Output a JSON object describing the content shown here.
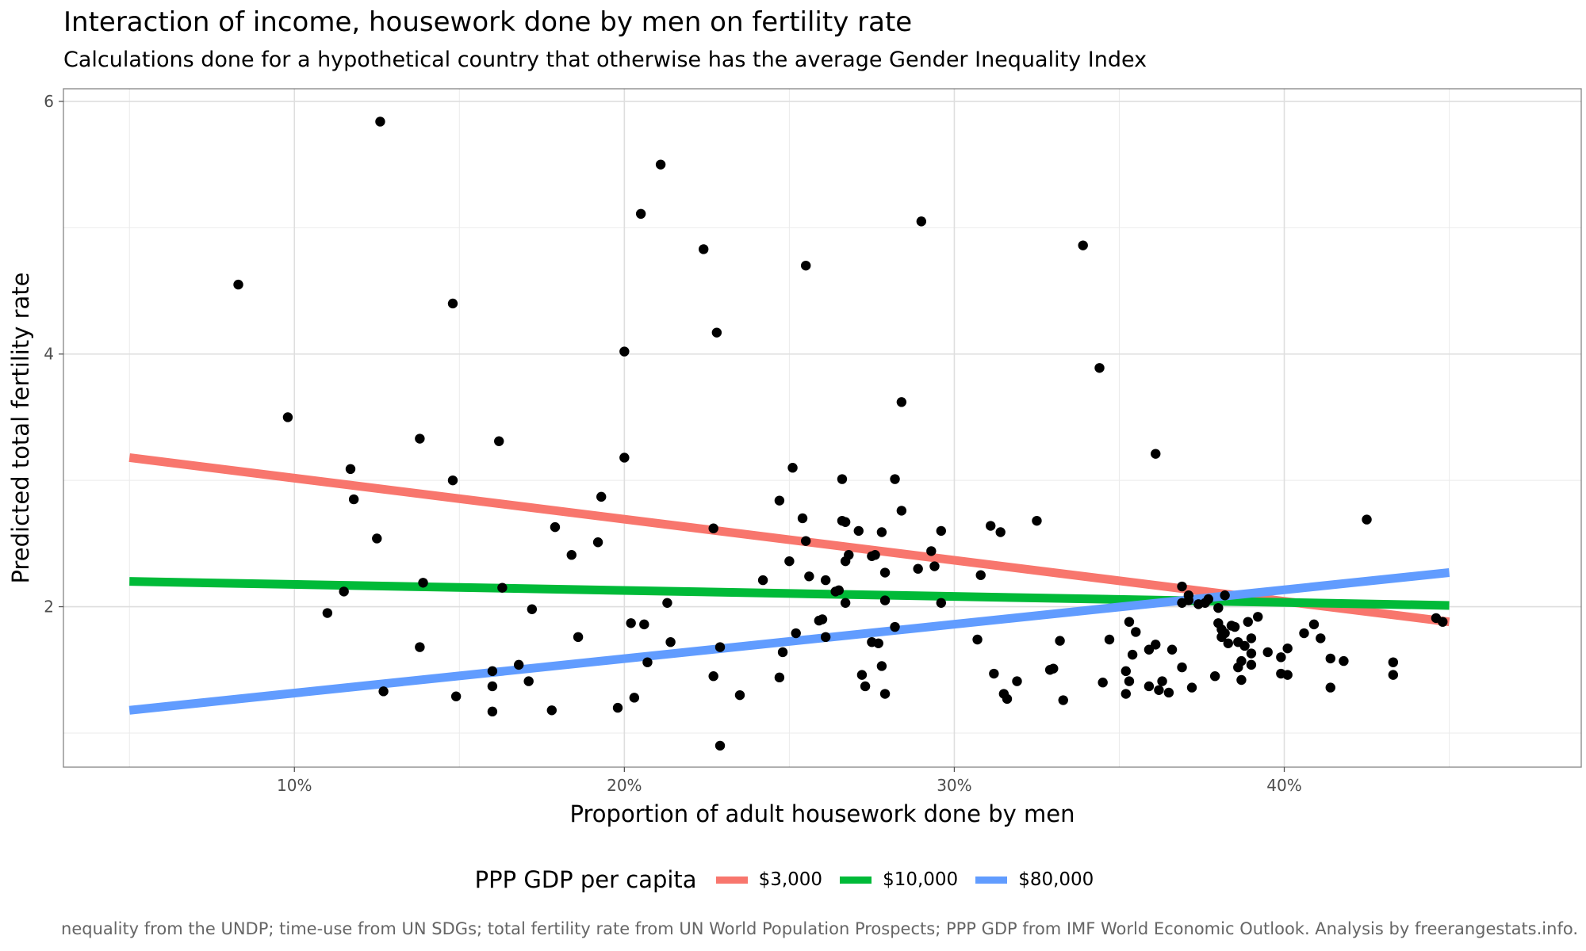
{
  "chart_data": {
    "type": "scatter",
    "title": "Interaction of income, housework done by men on fertility rate",
    "subtitle": "Calculations done for a hypothetical country that otherwise has the average Gender Inequality Index",
    "xlabel": "Proportion of adult housework done by men",
    "ylabel": "Predicted total fertility rate",
    "caption": "nequality from the UNDP; time-use from UN SDGs; total fertility rate from UN World Population Prospects; PPP GDP from IMF World Economic Outlook. Analysis by freerangestats.info.",
    "xlim": [
      3,
      49
    ],
    "ylim": [
      0.73,
      6.1
    ],
    "xticks": [
      10,
      20,
      30,
      40
    ],
    "xtick_labels": [
      "10%",
      "20%",
      "30%",
      "40%"
    ],
    "yticks": [
      2,
      4,
      6
    ],
    "ytick_labels": [
      "2",
      "4",
      "6"
    ],
    "grid": true,
    "legend": {
      "title": "PPP GDP per capita",
      "position": "bottom",
      "entries": [
        "$3,000",
        "$10,000",
        "$80,000"
      ]
    },
    "series": [
      {
        "name": "$3,000",
        "color": "#F8766D",
        "x": [
          5,
          45
        ],
        "y": [
          3.18,
          1.88
        ]
      },
      {
        "name": "$10,000",
        "color": "#00BA38",
        "x": [
          5,
          45
        ],
        "y": [
          2.2,
          2.01
        ]
      },
      {
        "name": "$80,000",
        "color": "#619CFF",
        "x": [
          5,
          45
        ],
        "y": [
          1.18,
          2.27
        ]
      }
    ],
    "points": [
      [
        8.3,
        4.55
      ],
      [
        9.8,
        3.5
      ],
      [
        11.0,
        1.95
      ],
      [
        11.5,
        2.12
      ],
      [
        11.7,
        3.09
      ],
      [
        11.8,
        2.85
      ],
      [
        12.5,
        2.54
      ],
      [
        12.6,
        5.84
      ],
      [
        12.7,
        1.33
      ],
      [
        13.8,
        3.33
      ],
      [
        13.8,
        1.68
      ],
      [
        13.9,
        2.19
      ],
      [
        14.8,
        4.4
      ],
      [
        14.8,
        3.0
      ],
      [
        14.9,
        1.29
      ],
      [
        16.0,
        1.17
      ],
      [
        16.0,
        1.49
      ],
      [
        16.0,
        1.37
      ],
      [
        16.2,
        3.31
      ],
      [
        16.3,
        2.15
      ],
      [
        16.8,
        1.54
      ],
      [
        17.1,
        1.41
      ],
      [
        17.2,
        1.98
      ],
      [
        17.8,
        1.18
      ],
      [
        17.9,
        2.63
      ],
      [
        18.4,
        2.41
      ],
      [
        18.6,
        1.76
      ],
      [
        19.2,
        2.51
      ],
      [
        19.3,
        2.87
      ],
      [
        19.8,
        1.2
      ],
      [
        20.0,
        4.02
      ],
      [
        20.0,
        3.18
      ],
      [
        20.2,
        1.87
      ],
      [
        20.3,
        1.28
      ],
      [
        20.5,
        5.11
      ],
      [
        20.6,
        1.86
      ],
      [
        20.7,
        1.56
      ],
      [
        21.1,
        5.5
      ],
      [
        21.3,
        2.03
      ],
      [
        21.4,
        1.72
      ],
      [
        22.4,
        4.83
      ],
      [
        22.7,
        2.62
      ],
      [
        22.7,
        1.45
      ],
      [
        22.8,
        4.17
      ],
      [
        22.9,
        0.9
      ],
      [
        22.9,
        1.68
      ],
      [
        23.5,
        1.3
      ],
      [
        24.2,
        2.21
      ],
      [
        24.7,
        1.44
      ],
      [
        24.7,
        2.84
      ],
      [
        24.8,
        1.64
      ],
      [
        25.0,
        2.36
      ],
      [
        25.1,
        3.1
      ],
      [
        25.2,
        1.79
      ],
      [
        25.4,
        2.7
      ],
      [
        25.5,
        4.7
      ],
      [
        25.5,
        2.52
      ],
      [
        25.6,
        2.24
      ],
      [
        25.9,
        1.89
      ],
      [
        26.0,
        1.9
      ],
      [
        26.1,
        1.76
      ],
      [
        26.1,
        2.21
      ],
      [
        26.4,
        2.12
      ],
      [
        26.5,
        2.13
      ],
      [
        26.6,
        3.01
      ],
      [
        26.6,
        2.68
      ],
      [
        26.7,
        2.67
      ],
      [
        26.7,
        2.03
      ],
      [
        26.7,
        2.36
      ],
      [
        26.8,
        2.41
      ],
      [
        27.1,
        2.6
      ],
      [
        27.2,
        1.46
      ],
      [
        27.3,
        1.37
      ],
      [
        27.5,
        2.4
      ],
      [
        27.5,
        1.72
      ],
      [
        27.6,
        2.41
      ],
      [
        27.7,
        1.71
      ],
      [
        27.8,
        2.59
      ],
      [
        27.8,
        1.53
      ],
      [
        27.9,
        2.27
      ],
      [
        27.9,
        2.05
      ],
      [
        27.9,
        1.31
      ],
      [
        28.2,
        1.84
      ],
      [
        28.2,
        3.01
      ],
      [
        28.4,
        3.62
      ],
      [
        28.4,
        2.76
      ],
      [
        28.9,
        2.3
      ],
      [
        29.0,
        5.05
      ],
      [
        29.3,
        2.44
      ],
      [
        29.4,
        2.32
      ],
      [
        29.6,
        2.03
      ],
      [
        29.6,
        2.6
      ],
      [
        30.7,
        1.74
      ],
      [
        30.8,
        2.25
      ],
      [
        31.1,
        2.64
      ],
      [
        31.2,
        1.47
      ],
      [
        31.4,
        2.59
      ],
      [
        31.5,
        1.31
      ],
      [
        31.6,
        1.27
      ],
      [
        31.9,
        1.41
      ],
      [
        32.5,
        2.68
      ],
      [
        32.9,
        1.5
      ],
      [
        33.0,
        1.51
      ],
      [
        33.2,
        1.73
      ],
      [
        33.3,
        1.26
      ],
      [
        33.9,
        4.86
      ],
      [
        34.4,
        3.89
      ],
      [
        34.5,
        1.4
      ],
      [
        34.7,
        1.74
      ],
      [
        35.2,
        1.49
      ],
      [
        35.2,
        1.31
      ],
      [
        35.3,
        1.41
      ],
      [
        35.3,
        1.88
      ],
      [
        35.4,
        1.62
      ],
      [
        35.5,
        1.8
      ],
      [
        35.9,
        1.66
      ],
      [
        35.9,
        1.37
      ],
      [
        36.1,
        1.7
      ],
      [
        36.1,
        3.21
      ],
      [
        36.2,
        1.34
      ],
      [
        36.3,
        1.41
      ],
      [
        36.5,
        1.32
      ],
      [
        36.6,
        1.66
      ],
      [
        36.9,
        1.52
      ],
      [
        36.9,
        2.16
      ],
      [
        36.9,
        2.03
      ],
      [
        37.1,
        2.05
      ],
      [
        37.1,
        2.09
      ],
      [
        37.2,
        1.36
      ],
      [
        37.4,
        2.02
      ],
      [
        37.6,
        2.03
      ],
      [
        37.7,
        2.06
      ],
      [
        37.9,
        1.45
      ],
      [
        38.0,
        1.87
      ],
      [
        38.0,
        1.99
      ],
      [
        38.1,
        1.76
      ],
      [
        38.1,
        1.82
      ],
      [
        38.2,
        1.79
      ],
      [
        38.2,
        2.09
      ],
      [
        38.3,
        1.71
      ],
      [
        38.4,
        1.85
      ],
      [
        38.5,
        1.84
      ],
      [
        38.6,
        1.52
      ],
      [
        38.6,
        1.72
      ],
      [
        38.7,
        1.57
      ],
      [
        38.7,
        1.42
      ],
      [
        38.8,
        1.69
      ],
      [
        38.9,
        1.88
      ],
      [
        39.0,
        1.75
      ],
      [
        39.0,
        1.63
      ],
      [
        39.0,
        1.54
      ],
      [
        39.2,
        1.92
      ],
      [
        39.5,
        1.64
      ],
      [
        39.9,
        1.47
      ],
      [
        39.9,
        1.6
      ],
      [
        40.1,
        1.46
      ],
      [
        40.1,
        1.67
      ],
      [
        40.6,
        1.79
      ],
      [
        40.9,
        1.86
      ],
      [
        41.1,
        1.75
      ],
      [
        41.4,
        1.59
      ],
      [
        41.4,
        1.36
      ],
      [
        41.8,
        1.57
      ],
      [
        42.5,
        2.69
      ],
      [
        43.3,
        1.46
      ],
      [
        43.3,
        1.56
      ],
      [
        44.6,
        1.91
      ],
      [
        44.8,
        1.88
      ]
    ]
  }
}
